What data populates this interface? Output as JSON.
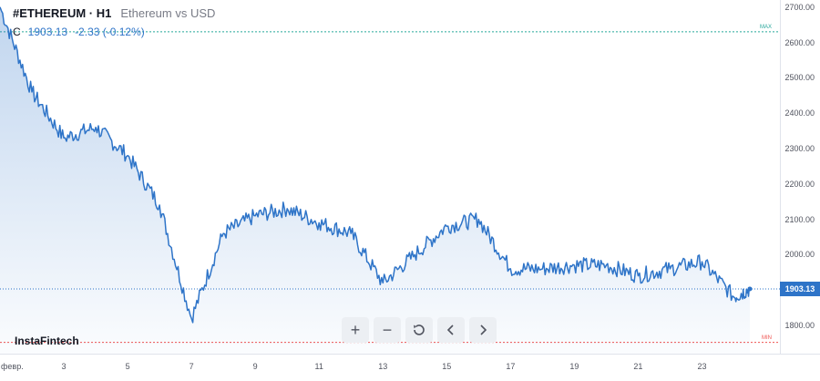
{
  "header": {
    "symbol": "#ETHEREUM · H1",
    "description": "Ethereum vs USD",
    "quote_label": "C",
    "quote_value": "1903.13",
    "quote_change": "-2.33 (-0.12%)"
  },
  "brand": "InstaFintech",
  "markers": {
    "max_label": "MAX",
    "min_label": "MIN",
    "max_value": 2630,
    "min_value": 1752
  },
  "current_price_label": "1903.13",
  "toolbar": {
    "zoom_in": "+",
    "zoom_out": "−",
    "reset_icon": "reset-icon",
    "scroll_left_icon": "chevron-left-icon",
    "scroll_right_icon": "chevron-right-icon"
  },
  "colors": {
    "line": "#2e74c8",
    "max": "#26a69a",
    "min": "#ef5350",
    "price_tag": "#2e74c8"
  },
  "chart_data": {
    "type": "area",
    "series": [
      {
        "x": [
          0,
          1,
          2,
          3,
          4,
          5,
          6,
          7,
          8,
          9,
          10,
          11,
          12,
          13,
          14,
          15,
          16,
          17,
          18,
          19,
          20,
          21,
          22,
          23,
          23.5
        ],
        "values": [
          2700,
          2460,
          2330,
          2360,
          2280,
          2140,
          1820,
          2060,
          2110,
          2130,
          2090,
          2060,
          1920,
          2000,
          2080,
          2100,
          1960,
          1960,
          1970,
          1970,
          1940,
          1960,
          1980,
          1880,
          1903.13
        ]
      }
    ],
    "x_tick_labels": [
      {
        "x": 0,
        "label": "февр."
      },
      {
        "x": 2,
        "label": "3"
      },
      {
        "x": 4,
        "label": "5"
      },
      {
        "x": 6,
        "label": "7"
      },
      {
        "x": 8,
        "label": "9"
      },
      {
        "x": 10,
        "label": "11"
      },
      {
        "x": 12,
        "label": "13"
      },
      {
        "x": 14,
        "label": "15"
      },
      {
        "x": 16,
        "label": "17"
      },
      {
        "x": 18,
        "label": "19"
      },
      {
        "x": 20,
        "label": "21"
      },
      {
        "x": 22,
        "label": "23"
      }
    ],
    "y_ticks": [
      "2700.00",
      "2600.00",
      "2500.00",
      "2400.00",
      "2300.00",
      "2200.00",
      "2100.00",
      "2000.00",
      "1900.00",
      "1800.00"
    ],
    "ylim": [
      1720,
      2720
    ],
    "xlim": [
      0,
      23.7
    ],
    "current_price": 1903.13
  }
}
